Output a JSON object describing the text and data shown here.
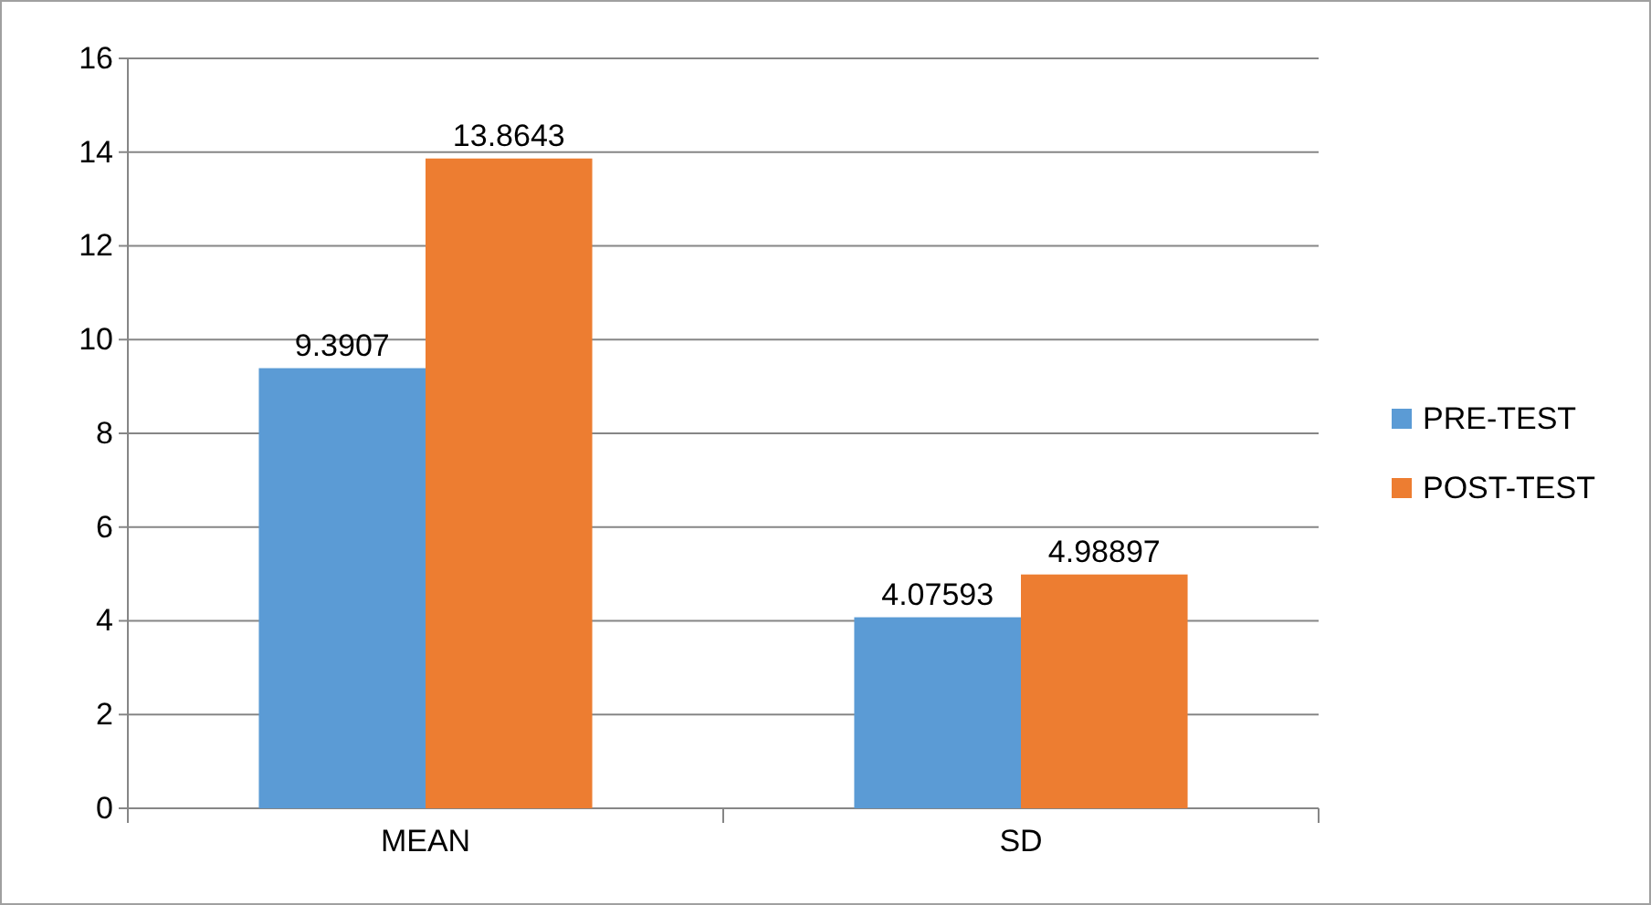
{
  "chart_data": {
    "type": "bar",
    "categories": [
      "MEAN",
      "SD"
    ],
    "series": [
      {
        "name": "PRE-TEST",
        "color": "#5b9bd5",
        "values": [
          9.3907,
          4.07593
        ]
      },
      {
        "name": "POST-TEST",
        "color": "#ed7d31",
        "values": [
          13.8643,
          4.98897
        ]
      }
    ],
    "ylim": [
      0,
      16
    ],
    "yticks": [
      0,
      2,
      4,
      6,
      8,
      10,
      12,
      14,
      16
    ],
    "grid": "y",
    "legend": "right",
    "data_labels": true
  }
}
